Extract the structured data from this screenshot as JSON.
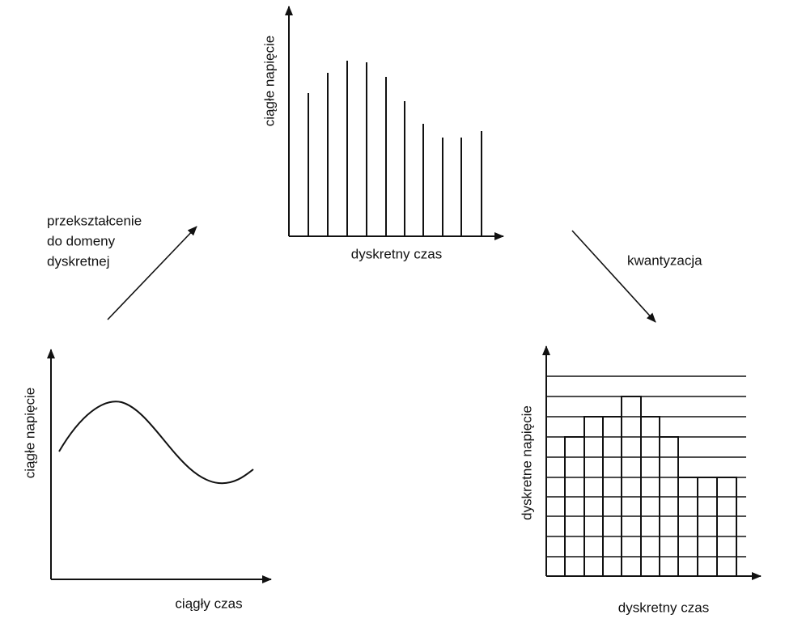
{
  "diagram": {
    "sampled": {
      "y_label": "ciągłe napięcie",
      "x_label": "dyskretny czas"
    },
    "continuous": {
      "y_label": "ciągłe napięcie",
      "x_label": "ciągły czas"
    },
    "quantized": {
      "y_label": "dyskretne napięcie",
      "x_label": "dyskretny czas"
    },
    "arrows": {
      "sampling": [
        "przekształcenie",
        "do domeny",
        "dyskretnej"
      ],
      "quantization": "kwantyzacja"
    }
  }
}
